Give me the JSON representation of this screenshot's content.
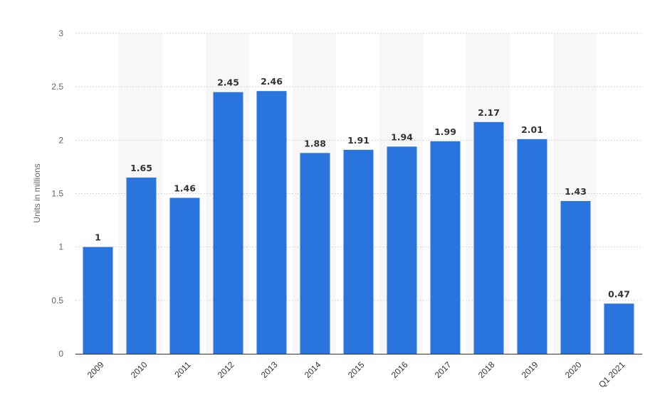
{
  "chart_data": {
    "type": "bar",
    "categories": [
      "2009",
      "2010",
      "2011",
      "2012",
      "2013",
      "2014",
      "2015",
      "2016",
      "2017",
      "2018",
      "2019",
      "2020",
      "Q1 2021"
    ],
    "values": [
      1,
      1.65,
      1.46,
      2.45,
      2.46,
      1.88,
      1.91,
      1.94,
      1.99,
      2.17,
      2.01,
      1.43,
      0.47
    ],
    "value_labels": [
      "1",
      "1.65",
      "1.46",
      "2.45",
      "2.46",
      "1.88",
      "1.91",
      "1.94",
      "1.99",
      "2.17",
      "2.01",
      "1.43",
      "0.47"
    ],
    "title": "",
    "xlabel": "",
    "ylabel": "Units in millions",
    "ylim": [
      0,
      3
    ],
    "yticks": [
      0,
      0.5,
      1,
      1.5,
      2,
      2.5,
      3
    ],
    "ytick_labels": [
      "0",
      "0.5",
      "1",
      "1.5",
      "2",
      "2.5",
      "3"
    ],
    "grid": true,
    "alternating_band_shading": true,
    "colors": {
      "bar": "#2A74DD",
      "band": "#F7F7F7",
      "grid": "#CCCCCC",
      "axis": "#333333"
    }
  }
}
